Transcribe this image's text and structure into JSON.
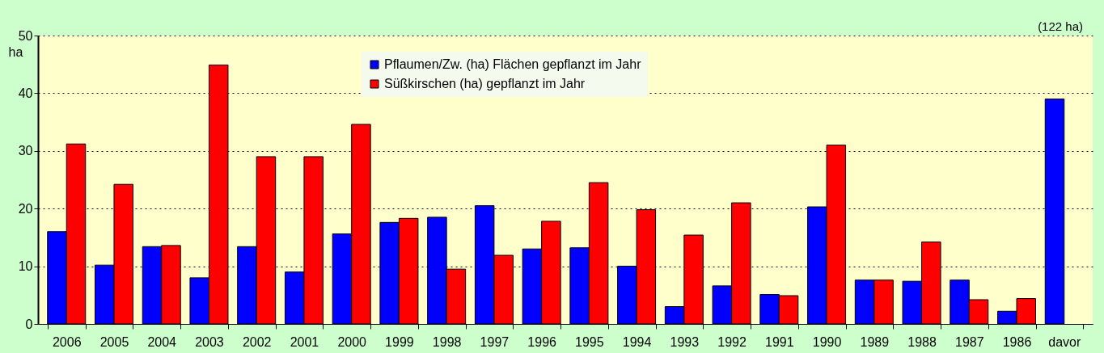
{
  "chart_data": {
    "type": "bar",
    "ylabel": "ha",
    "categories": [
      "2006",
      "2005",
      "2004",
      "2003",
      "2002",
      "2001",
      "2000",
      "1999",
      "1998",
      "1997",
      "1996",
      "1995",
      "1994",
      "1993",
      "1992",
      "1991",
      "1990",
      "1989",
      "1988",
      "1987",
      "1986",
      "davor"
    ],
    "series": [
      {
        "name": "Pflaumen/Zw. (ha) Flächen gepflanzt im Jahr",
        "color": "#0000ff",
        "values": [
          16,
          10.2,
          13.4,
          8,
          13.4,
          9,
          15.6,
          17.6,
          18.5,
          20.5,
          13,
          13.2,
          10,
          3,
          6.6,
          5.1,
          20.3,
          7.6,
          7.4,
          7.6,
          2.2,
          39
        ]
      },
      {
        "name": "Süßkirschen (ha) gepflanzt im Jahr",
        "color": "#ff0000",
        "values": [
          31.2,
          24.2,
          13.6,
          44.9,
          29,
          29,
          34.6,
          18.3,
          9.5,
          11.9,
          17.8,
          24.5,
          19.8,
          15.4,
          21,
          4.9,
          31,
          7.6,
          14.2,
          4.2,
          4.4,
          null
        ]
      }
    ],
    "annotations": [
      "(122 ha)"
    ],
    "ylim": [
      0,
      50
    ],
    "yticks": [
      0,
      10,
      20,
      30,
      40,
      50
    ],
    "grid": "y",
    "legend": "top"
  }
}
